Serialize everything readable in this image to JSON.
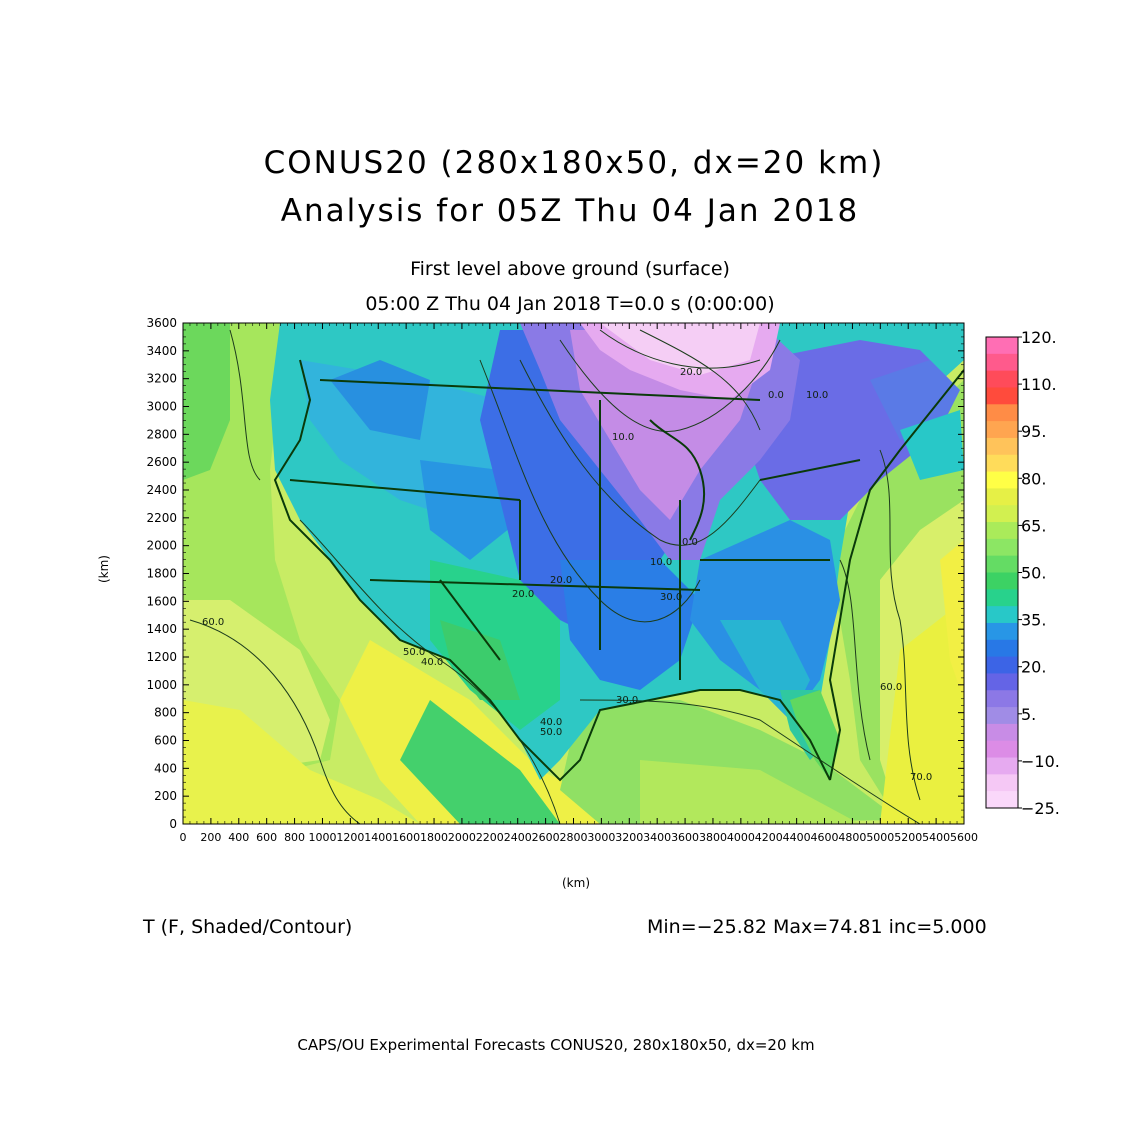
{
  "header": {
    "title_line1": "CONUS20 (280x180x50, dx=20 km)",
    "title_line2": "Analysis for 05Z Thu 04 Jan 2018",
    "subtitle_line1": "First level above ground (surface)",
    "subtitle_line2": "05:00 Z Thu 04 Jan 2018    T=0.0 s (0:00:00)"
  },
  "axes": {
    "x_label": "(km)",
    "y_label": "(km)",
    "x_ticks": [
      "0",
      "200",
      "400",
      "600",
      "800",
      "1000",
      "1200",
      "1400",
      "1600",
      "1800",
      "2000",
      "2200",
      "2400",
      "2600",
      "2800",
      "3000",
      "3200",
      "3400",
      "3600",
      "3800",
      "4000",
      "4200",
      "4400",
      "4600",
      "4800",
      "5000",
      "5200",
      "5400",
      "5600"
    ],
    "y_ticks": [
      "0",
      "200",
      "400",
      "600",
      "800",
      "1000",
      "1200",
      "1400",
      "1600",
      "1800",
      "2000",
      "2200",
      "2400",
      "2600",
      "2800",
      "3000",
      "3200",
      "3400",
      "3600"
    ],
    "x_range": [
      0,
      5600
    ],
    "y_range": [
      0,
      3600
    ]
  },
  "colorbar": {
    "labels": [
      "120.",
      "110.",
      "95.",
      "80.",
      "65.",
      "50.",
      "35.",
      "20.",
      "5.",
      "−10.",
      "−25."
    ],
    "colors": [
      "#ff6eb4",
      "#ff5a8c",
      "#ff4b5a",
      "#ff4b3c",
      "#ff8c46",
      "#ffa550",
      "#ffc35a",
      "#ffdc5a",
      "#ffff46",
      "#e6f046",
      "#d2f050",
      "#aaeb5a",
      "#8ce664",
      "#64dc64",
      "#3cd264",
      "#28d28c",
      "#28c8c8",
      "#2896e6",
      "#2878e6",
      "#3c64e6",
      "#6464e6",
      "#8c78e6",
      "#a08ce6",
      "#c88ce6",
      "#dc8ce6",
      "#e6aaf0",
      "#f5c8f5",
      "#fad8fa"
    ]
  },
  "contour_labels": [
    "20.0",
    "0.0",
    "10.0",
    "10.0",
    "0.0",
    "10.0",
    "20.0",
    "20.0",
    "30.0",
    "30.0",
    "40.0",
    "50.0",
    "60.0",
    "60.0",
    "70.0",
    "50.0",
    "40.0"
  ],
  "field_label": "T (F, Shaded/Contour)",
  "stats": "Min=−25.82  Max=74.81  inc=5.000",
  "footer": "CAPS/OU Experimental Forecasts   CONUS20, 280x180x50, dx=20 km"
}
